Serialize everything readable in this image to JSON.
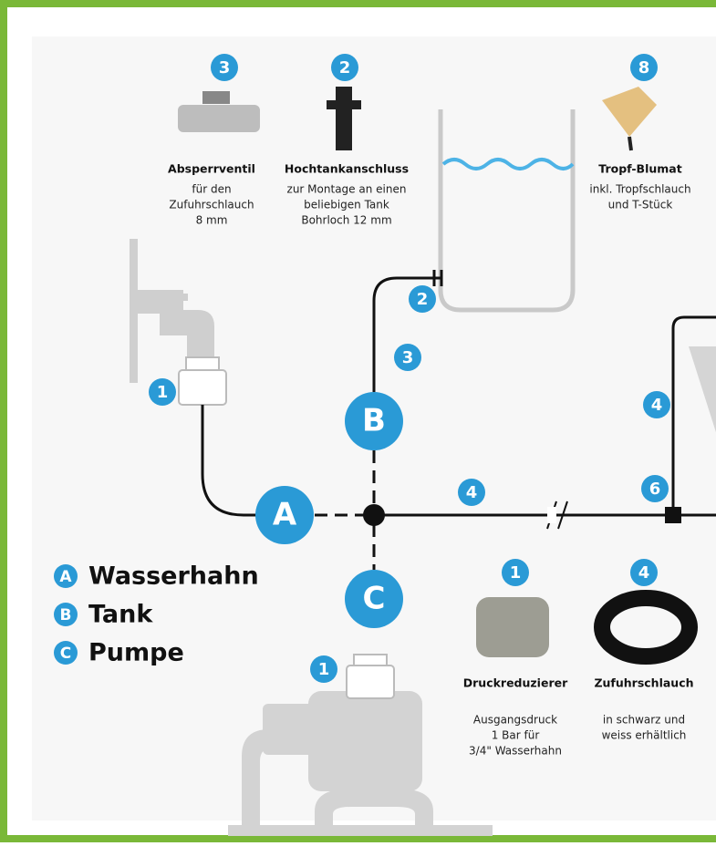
{
  "products": [
    {
      "badge": "3",
      "title": "Absperrventil",
      "lines": [
        "für den",
        "Zufuhrschlauch",
        "8 mm"
      ]
    },
    {
      "badge": "2",
      "title": "Hochtankanschluss",
      "lines": [
        "zur Montage an einen",
        "beliebigen Tank",
        "Bohrloch 12 mm"
      ]
    },
    {
      "badge": "8",
      "title": "Tropf-Blumat",
      "lines": [
        "inkl. Tropfschlauch",
        "und T-Stück"
      ]
    },
    {
      "badge": "1",
      "title": "Druckreduzierer",
      "lines": [
        "Ausgangsdruck",
        "1 Bar für",
        "3/4\" Wasserhahn"
      ]
    },
    {
      "badge": "4",
      "title": "Zufuhrschlauch",
      "lines": [
        "in schwarz und",
        "weiss erhältlich"
      ]
    }
  ],
  "markers": [
    "2",
    "3",
    "1",
    "4",
    "6",
    "4",
    "1"
  ],
  "hubs": [
    "A",
    "B",
    "C"
  ],
  "legend": [
    {
      "letter": "A",
      "label": "Wasserhahn"
    },
    {
      "letter": "B",
      "label": "Tank"
    },
    {
      "letter": "C",
      "label": "Pumpe"
    }
  ]
}
